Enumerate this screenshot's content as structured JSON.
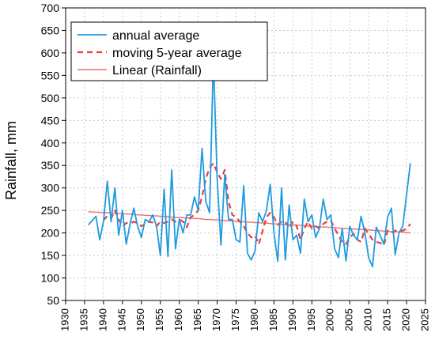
{
  "chart_data": {
    "type": "line",
    "ylabel": "Rainfall, mm",
    "xlabel": "",
    "xlim": [
      1930,
      2025
    ],
    "ylim": [
      50,
      700
    ],
    "x_ticks": [
      1930,
      1935,
      1940,
      1945,
      1950,
      1955,
      1960,
      1965,
      1970,
      1975,
      1980,
      1985,
      1990,
      1995,
      2000,
      2005,
      2010,
      2015,
      2020,
      2025
    ],
    "y_ticks": [
      50,
      100,
      150,
      200,
      250,
      300,
      350,
      400,
      450,
      500,
      550,
      600,
      650,
      700
    ],
    "grid": true,
    "legend_position": "top-left",
    "x": [
      1936,
      1938,
      1939,
      1940,
      1941,
      1942,
      1943,
      1944,
      1945,
      1946,
      1947,
      1948,
      1949,
      1950,
      1951,
      1952,
      1953,
      1954,
      1955,
      1956,
      1957,
      1958,
      1959,
      1960,
      1961,
      1962,
      1963,
      1964,
      1965,
      1966,
      1967,
      1968,
      1969,
      1970,
      1971,
      1972,
      1973,
      1974,
      1975,
      1976,
      1977,
      1978,
      1979,
      1980,
      1981,
      1982,
      1983,
      1984,
      1985,
      1986,
      1987,
      1988,
      1989,
      1990,
      1991,
      1992,
      1993,
      1994,
      1995,
      1996,
      1997,
      1998,
      1999,
      2000,
      2001,
      2002,
      2003,
      2004,
      2005,
      2006,
      2007,
      2008,
      2009,
      2010,
      2011,
      2012,
      2013,
      2014,
      2015,
      2016,
      2017,
      2018,
      2019,
      2020,
      2021
    ],
    "series": [
      {
        "name": "annual average",
        "color": "#1f9be0",
        "style": "solid",
        "values": [
          218,
          237,
          185,
          226,
          315,
          225,
          300,
          195,
          250,
          175,
          220,
          255,
          215,
          190,
          230,
          225,
          240,
          215,
          150,
          297,
          148,
          340,
          165,
          230,
          200,
          240,
          240,
          280,
          250,
          388,
          270,
          245,
          590,
          320,
          173,
          330,
          230,
          230,
          185,
          180,
          305,
          155,
          140,
          160,
          245,
          225,
          250,
          308,
          200,
          137,
          300,
          140,
          262,
          185,
          195,
          155,
          275,
          225,
          240,
          190,
          210,
          275,
          230,
          240,
          165,
          145,
          210,
          138,
          215,
          195,
          185,
          237,
          200,
          145,
          125,
          213,
          195,
          175,
          235,
          255,
          152,
          200,
          215,
          285,
          355
        ]
      },
      {
        "name": "moving 5-year average",
        "color": "#e84040",
        "style": "dashed",
        "values": [
          null,
          null,
          null,
          228,
          238,
          232,
          250,
          230,
          215,
          222,
          221,
          225,
          222,
          215,
          220,
          225,
          223,
          215,
          225,
          222,
          225,
          230,
          225,
          230,
          225,
          213,
          235,
          240,
          250,
          280,
          320,
          345,
          355,
          335,
          320,
          340,
          270,
          240,
          235,
          225,
          215,
          200,
          190,
          195,
          175,
          205,
          235,
          245,
          235,
          218,
          225,
          225,
          210,
          225,
          215,
          185,
          210,
          225,
          210,
          215,
          210,
          220,
          225,
          228,
          210,
          195,
          180,
          175,
          190,
          198,
          185,
          180,
          210,
          198,
          185,
          180,
          178,
          172,
          205,
          200,
          205,
          205,
          205,
          210,
          220
        ]
      },
      {
        "name": "Linear (Rainfall)",
        "color": "#f26b6b",
        "style": "trend",
        "values": [
          247,
          246,
          246,
          245,
          245,
          244,
          244,
          243,
          243,
          242,
          242,
          241,
          240,
          240,
          239,
          239,
          238,
          238,
          237,
          237,
          236,
          235,
          235,
          234,
          234,
          233,
          233,
          232,
          232,
          231,
          230,
          230,
          229,
          229,
          228,
          228,
          227,
          227,
          226,
          225,
          225,
          224,
          224,
          223,
          223,
          222,
          222,
          221,
          220,
          220,
          219,
          219,
          218,
          218,
          217,
          217,
          216,
          215,
          215,
          214,
          214,
          213,
          213,
          212,
          212,
          211,
          210,
          210,
          209,
          209,
          208,
          208,
          207,
          207,
          206,
          205,
          205,
          204,
          204,
          203,
          203,
          202,
          202,
          201,
          200
        ]
      }
    ]
  }
}
